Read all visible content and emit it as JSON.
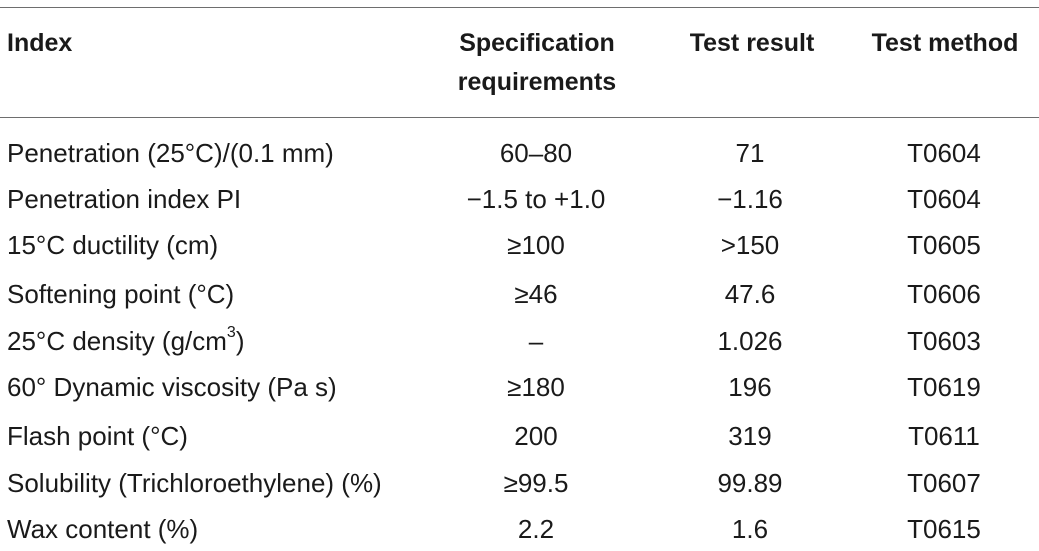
{
  "table": {
    "headers": {
      "index": "Index",
      "spec_line1": "Specification",
      "spec_line2": "requirements",
      "result": "Test result",
      "method": "Test method"
    },
    "rows": [
      {
        "index": "Penetration (25°C)/(0.1 mm)",
        "spec": "60–80",
        "result": "71",
        "method": "T0604"
      },
      {
        "index": "Penetration index PI",
        "spec": "−1.5 to +1.0",
        "result": "−1.16",
        "method": "T0604"
      },
      {
        "index": "15°C ductility (cm)",
        "spec": "≥100",
        "result": ">150",
        "method": "T0605"
      },
      {
        "index": "Softening point (°C)",
        "spec": "≥46",
        "result": "47.6",
        "method": "T0606"
      },
      {
        "index_pre": "25°C density (g/cm",
        "index_sup": "3",
        "index_post": ")",
        "spec": "–",
        "result": "1.026",
        "method": "T0603"
      },
      {
        "index": "60° Dynamic viscosity (Pa s)",
        "spec": "≥180",
        "result": "196",
        "method": "T0619"
      },
      {
        "index": "Flash point (°C)",
        "spec": "200",
        "result": "319",
        "method": "T0611"
      },
      {
        "index": "Solubility (Trichloroethylene) (%)",
        "spec": "≥99.5",
        "result": "99.89",
        "method": "T0607"
      },
      {
        "index": "Wax content (%)",
        "spec": "2.2",
        "result": "1.6",
        "method": "T0615"
      }
    ]
  }
}
